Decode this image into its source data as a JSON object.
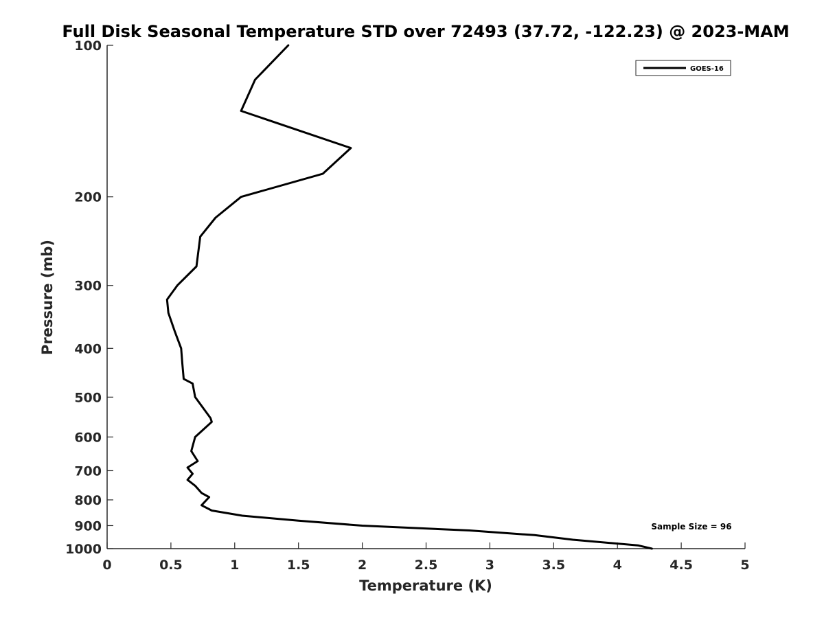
{
  "chart_data": {
    "type": "line",
    "title": "Full Disk Seasonal Temperature STD over 72493 (37.72, -122.23) @ 2023-MAM",
    "xlabel": "Temperature (K)",
    "ylabel": "Pressure (mb)",
    "xlim": [
      0,
      5
    ],
    "ylim": [
      1000,
      100
    ],
    "y_scale": "log",
    "y_reversed": true,
    "x_ticks": [
      "0",
      "0.5",
      "1",
      "1.5",
      "2",
      "2.5",
      "3",
      "3.5",
      "4",
      "4.5",
      "5"
    ],
    "y_ticks": [
      100,
      200,
      300,
      400,
      500,
      600,
      700,
      800,
      900,
      1000
    ],
    "legend": {
      "position": "top-right",
      "entries": [
        "GOES-16"
      ]
    },
    "annotation": "Sample Size = 96",
    "grid": false,
    "series": [
      {
        "name": "GOES-16",
        "color": "#000000",
        "points": [
          {
            "x": 1.42,
            "y": 100
          },
          {
            "x": 1.16,
            "y": 117
          },
          {
            "x": 1.05,
            "y": 135
          },
          {
            "x": 1.91,
            "y": 160
          },
          {
            "x": 1.69,
            "y": 180
          },
          {
            "x": 1.05,
            "y": 200
          },
          {
            "x": 0.85,
            "y": 220
          },
          {
            "x": 0.73,
            "y": 240
          },
          {
            "x": 0.7,
            "y": 275
          },
          {
            "x": 0.55,
            "y": 300
          },
          {
            "x": 0.47,
            "y": 320
          },
          {
            "x": 0.48,
            "y": 340
          },
          {
            "x": 0.53,
            "y": 370
          },
          {
            "x": 0.58,
            "y": 400
          },
          {
            "x": 0.59,
            "y": 430
          },
          {
            "x": 0.6,
            "y": 460
          },
          {
            "x": 0.67,
            "y": 470
          },
          {
            "x": 0.69,
            "y": 500
          },
          {
            "x": 0.81,
            "y": 550
          },
          {
            "x": 0.82,
            "y": 560
          },
          {
            "x": 0.69,
            "y": 600
          },
          {
            "x": 0.66,
            "y": 640
          },
          {
            "x": 0.71,
            "y": 670
          },
          {
            "x": 0.63,
            "y": 690
          },
          {
            "x": 0.67,
            "y": 710
          },
          {
            "x": 0.63,
            "y": 730
          },
          {
            "x": 0.69,
            "y": 750
          },
          {
            "x": 0.74,
            "y": 775
          },
          {
            "x": 0.8,
            "y": 790
          },
          {
            "x": 0.74,
            "y": 820
          },
          {
            "x": 0.82,
            "y": 840
          },
          {
            "x": 1.06,
            "y": 860
          },
          {
            "x": 1.5,
            "y": 880
          },
          {
            "x": 2.0,
            "y": 900
          },
          {
            "x": 2.84,
            "y": 920
          },
          {
            "x": 3.35,
            "y": 940
          },
          {
            "x": 3.65,
            "y": 960
          },
          {
            "x": 4.16,
            "y": 985
          },
          {
            "x": 4.27,
            "y": 1000
          }
        ]
      }
    ]
  }
}
